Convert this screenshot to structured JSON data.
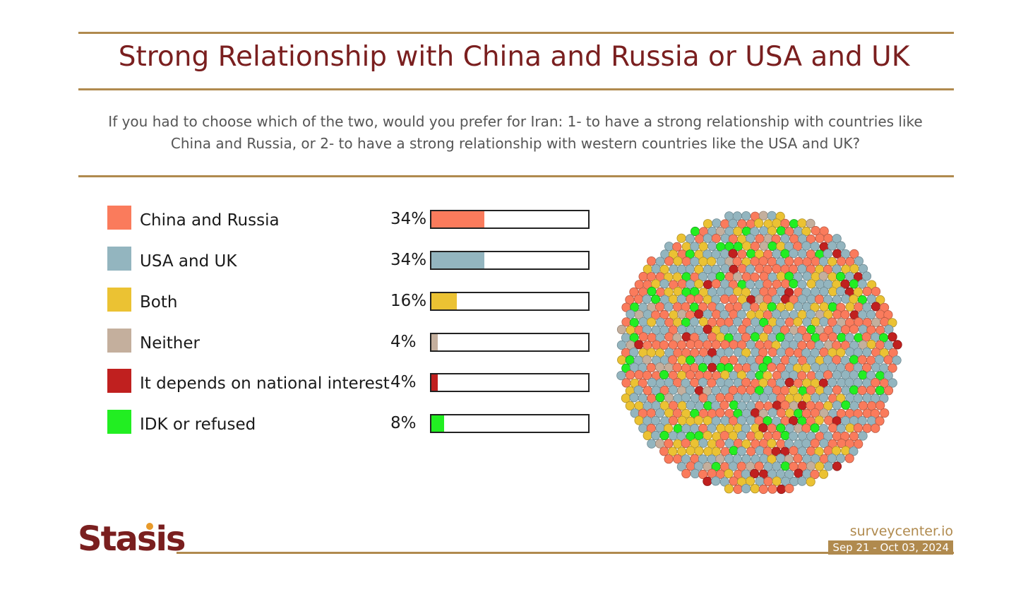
{
  "chart_data": {
    "type": "bar",
    "title": "Strong Relationship with China and Russia or USA and UK",
    "subtitle": "If you had to choose which of the two, would you prefer for Iran: 1- to have a strong relationship with countries like China and Russia, or 2- to have a strong relationship with western countries like the USA and UK?",
    "categories": [
      "China and Russia",
      "USA and UK",
      "Both",
      "Neither",
      "It depends on national interest",
      "IDK or refused"
    ],
    "values": [
      34,
      34,
      16,
      4,
      4,
      8
    ],
    "value_labels": [
      "34%",
      "34%",
      "16%",
      "4%",
      "4%",
      "8%"
    ],
    "colors": [
      "#fa7b5c",
      "#93b5bf",
      "#ebc233",
      "#c4af9d",
      "#c0201f",
      "#22ee22"
    ],
    "xlim": [
      0,
      100
    ],
    "legend": "left",
    "grid": false
  },
  "footer": {
    "logo_text": "Stasis",
    "site": "surveycenter.io",
    "date_range": "Sep 21 - Oct 03, 2024"
  },
  "icons": {
    "logo": "stasis-logo",
    "bubble_cluster": "bubble-cluster-graphic"
  }
}
